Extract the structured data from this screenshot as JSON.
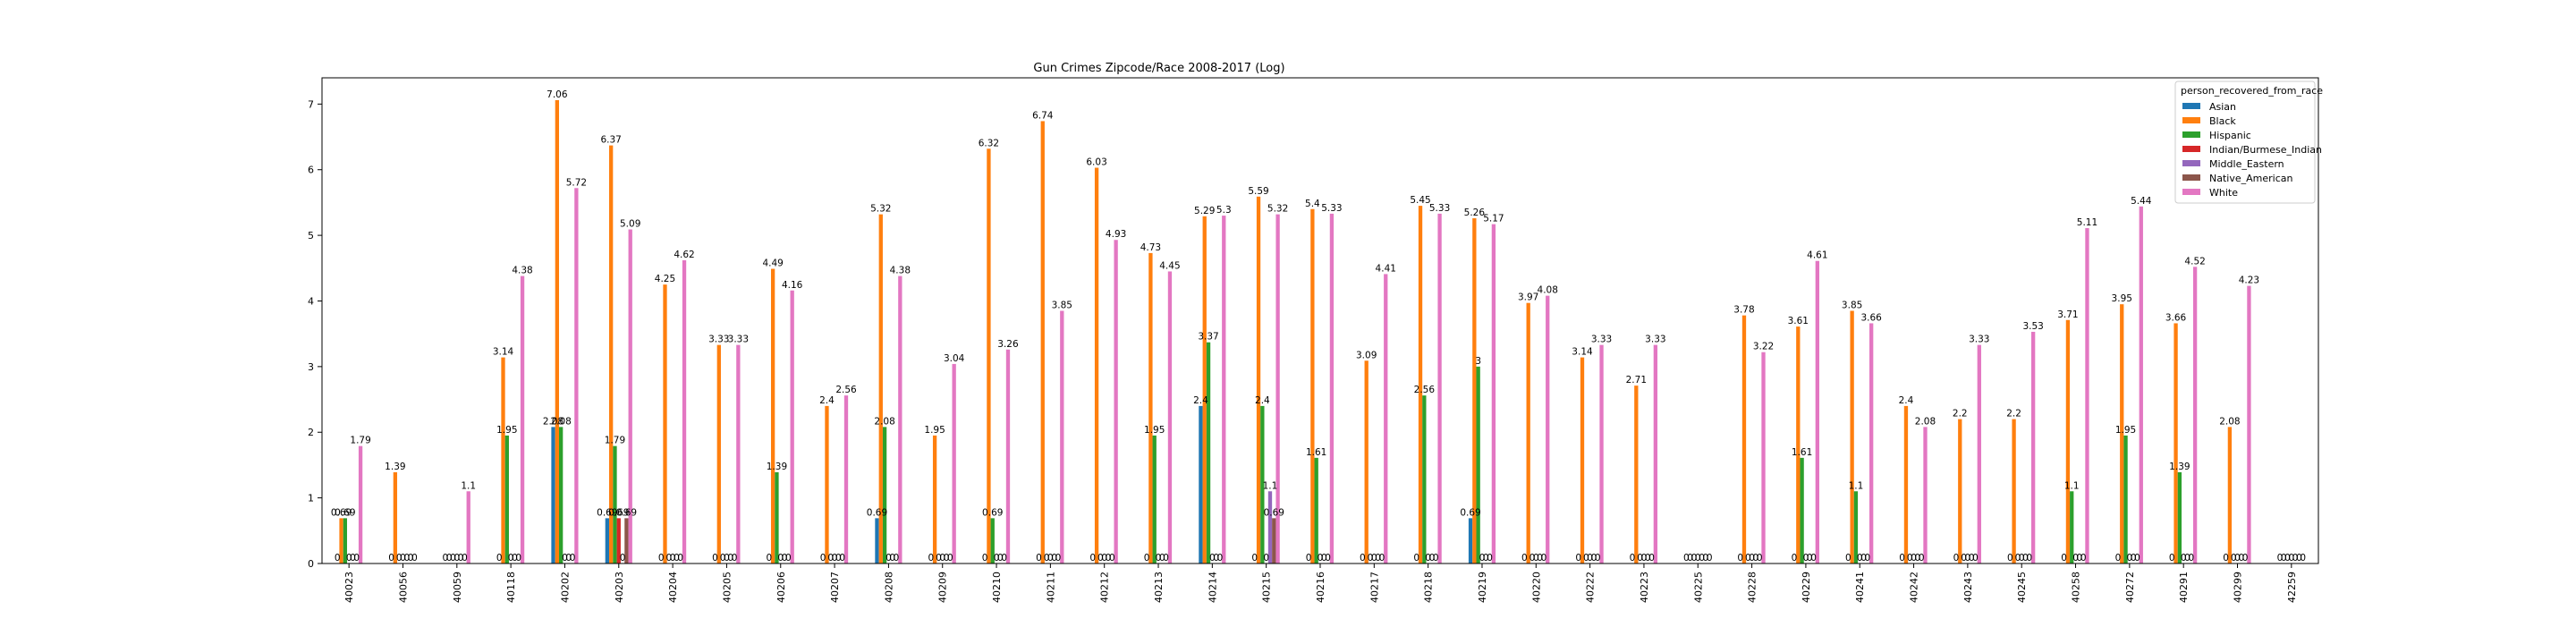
{
  "chart_data": {
    "type": "bar",
    "title": "Gun Crimes Zipcode/Race 2008-2017 (Log)",
    "xlabel": "",
    "ylabel": "",
    "ylim": [
      0,
      7.4
    ],
    "yticks": [
      0,
      1,
      2,
      3,
      4,
      5,
      6,
      7
    ],
    "grid": false,
    "legend_title": "person_recovered_from_race",
    "legend_position": "top-right",
    "categories": [
      "40023",
      "40056",
      "40059",
      "40118",
      "40202",
      "40203",
      "40204",
      "40205",
      "40206",
      "40207",
      "40208",
      "40209",
      "40210",
      "40211",
      "40212",
      "40213",
      "40214",
      "40215",
      "40216",
      "40217",
      "40218",
      "40219",
      "40220",
      "40222",
      "40223",
      "40225",
      "40228",
      "40229",
      "40241",
      "40242",
      "40243",
      "40245",
      "40258",
      "40272",
      "40291",
      "40299",
      "42259"
    ],
    "series": [
      {
        "name": "Asian",
        "color": "#1f77b4",
        "values": [
          0.0,
          0.0,
          0.0,
          0.0,
          2.08,
          0.69,
          0.0,
          0.0,
          0.0,
          0.0,
          0.69,
          0.0,
          0.0,
          0.0,
          0.0,
          0.0,
          2.4,
          0.0,
          0.0,
          0.0,
          0.0,
          0.69,
          0.0,
          0.0,
          0.0,
          0.0,
          0.0,
          0.0,
          0.0,
          0.0,
          0.0,
          0.0,
          0.0,
          0.0,
          0.0,
          0.0,
          0.0
        ]
      },
      {
        "name": "Black",
        "color": "#ff7f0e",
        "values": [
          0.69,
          1.39,
          0.0,
          3.14,
          7.06,
          6.37,
          4.25,
          3.33,
          4.49,
          2.4,
          5.32,
          1.95,
          6.32,
          6.74,
          6.03,
          4.73,
          5.29,
          5.59,
          5.4,
          3.09,
          5.45,
          5.26,
          3.97,
          3.14,
          2.71,
          0.0,
          3.78,
          3.61,
          3.85,
          2.4,
          2.2,
          2.2,
          3.71,
          3.95,
          3.66,
          2.08,
          0.0
        ]
      },
      {
        "name": "Hispanic",
        "color": "#2ca02c",
        "values": [
          0.69,
          0.0,
          0.0,
          1.95,
          2.08,
          1.79,
          0.0,
          0.0,
          1.39,
          0.0,
          2.08,
          0.0,
          0.69,
          0.0,
          0.0,
          1.95,
          3.37,
          2.4,
          1.61,
          0.0,
          2.56,
          3.0,
          0.0,
          0.0,
          0.0,
          0.0,
          0.0,
          1.61,
          1.1,
          0.0,
          0.0,
          0.0,
          1.1,
          1.95,
          1.39,
          0.0,
          0.0
        ]
      },
      {
        "name": "Indian/Burmese_Indian",
        "color": "#d62728",
        "values": [
          0.0,
          0.0,
          0.0,
          0.0,
          0.0,
          0.69,
          0.0,
          0.0,
          0.0,
          0.0,
          0.0,
          0.0,
          0.0,
          0.0,
          0.0,
          0.0,
          0.0,
          0.0,
          0.0,
          0.0,
          0.0,
          0.0,
          0.0,
          0.0,
          0.0,
          0.0,
          0.0,
          0.0,
          0.0,
          0.0,
          0.0,
          0.0,
          0.0,
          0.0,
          0.0,
          0.0,
          0.0
        ]
      },
      {
        "name": "Middle_Eastern",
        "color": "#9467bd",
        "values": [
          0.0,
          0.0,
          0.0,
          0.0,
          0.0,
          0.0,
          0.0,
          0.0,
          0.0,
          0.0,
          0.0,
          0.0,
          0.0,
          0.0,
          0.0,
          0.0,
          0.0,
          1.1,
          0.0,
          0.0,
          0.0,
          0.0,
          0.0,
          0.0,
          0.0,
          0.0,
          0.0,
          0.0,
          0.0,
          0.0,
          0.0,
          0.0,
          0.0,
          0.0,
          0.0,
          0.0,
          0.0
        ]
      },
      {
        "name": "Native_American",
        "color": "#8c564b",
        "values": [
          0.0,
          0.0,
          0.0,
          0.0,
          0.0,
          0.69,
          0.0,
          0.0,
          0.0,
          0.0,
          0.0,
          0.0,
          0.0,
          0.0,
          0.0,
          0.0,
          0.0,
          0.69,
          0.0,
          0.0,
          0.0,
          0.0,
          0.0,
          0.0,
          0.0,
          0.0,
          0.0,
          0.0,
          0.0,
          0.0,
          0.0,
          0.0,
          0.0,
          0.0,
          0.0,
          0.0,
          0.0
        ]
      },
      {
        "name": "White",
        "color": "#e377c2",
        "values": [
          1.79,
          0.0,
          1.1,
          4.38,
          5.72,
          5.09,
          4.62,
          3.33,
          4.16,
          2.56,
          4.38,
          3.04,
          3.26,
          3.85,
          4.93,
          4.45,
          5.3,
          5.32,
          5.33,
          4.41,
          5.33,
          5.17,
          4.08,
          3.33,
          3.33,
          0.0,
          3.22,
          4.61,
          3.66,
          2.08,
          3.33,
          3.53,
          5.11,
          5.44,
          4.52,
          4.23,
          0.0
        ]
      }
    ]
  }
}
